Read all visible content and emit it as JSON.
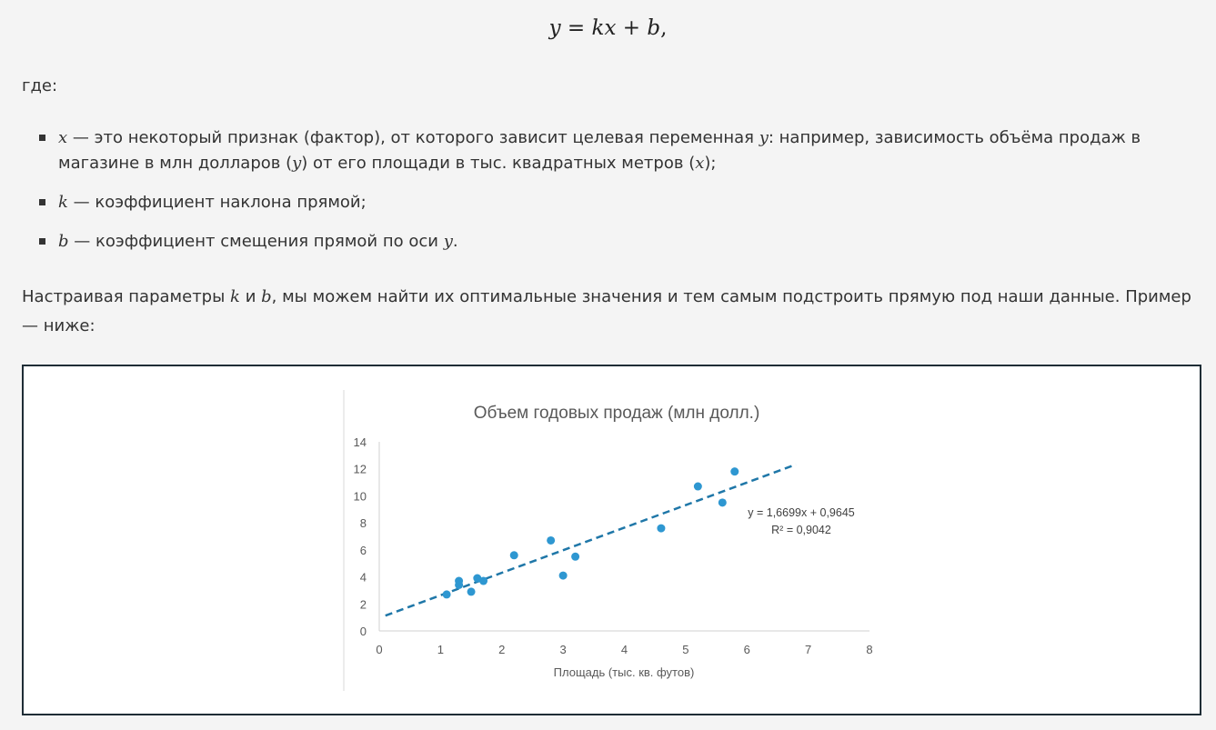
{
  "formula": {
    "y": "y",
    "eq": " = ",
    "k": "k",
    "x": "x",
    "plus": " + ",
    "b": "b",
    "comma": ","
  },
  "where_label": "где:",
  "definitions": [
    {
      "var": "x",
      "text_a": " — это некоторый признак (фактор), от которого зависит целевая переменная ",
      "var2": "y",
      "text_b": ": например, зависимость объёма продаж в магазине в млн долларов (",
      "var3": "y",
      "text_c": ") от его площади в тыс. квадратных метров (",
      "var4": "x",
      "text_d": ");"
    },
    {
      "var": "k",
      "text_a": " — коэффициент наклона прямой;"
    },
    {
      "var": "b",
      "text_a": " — коэффициент смещения прямой по оси ",
      "var2": "y",
      "text_b": "."
    }
  ],
  "paragraph": {
    "a": "Настраивая параметры ",
    "k": "k",
    "b_text": " и ",
    "b": "b",
    "c": ", мы можем найти их оптимальные значения и тем самым подстроить прямую под наши данные. Пример — ниже:"
  },
  "chart_data": {
    "type": "scatter",
    "title": "Объем годовых продаж (млн  долл.)",
    "xlabel": "Площадь (тыс. кв. футов)",
    "ylabel": "",
    "xlim": [
      0,
      8
    ],
    "ylim": [
      0,
      14
    ],
    "x_ticks": [
      0,
      1,
      2,
      3,
      4,
      5,
      6,
      7,
      8
    ],
    "y_ticks": [
      0,
      2,
      4,
      6,
      8,
      10,
      12,
      14
    ],
    "points": [
      {
        "x": 1.1,
        "y": 2.7
      },
      {
        "x": 1.3,
        "y": 3.4
      },
      {
        "x": 1.3,
        "y": 3.7
      },
      {
        "x": 1.5,
        "y": 2.9
      },
      {
        "x": 1.6,
        "y": 3.9
      },
      {
        "x": 1.7,
        "y": 3.7
      },
      {
        "x": 2.2,
        "y": 5.6
      },
      {
        "x": 2.8,
        "y": 6.7
      },
      {
        "x": 3.0,
        "y": 4.1
      },
      {
        "x": 3.2,
        "y": 5.5
      },
      {
        "x": 4.6,
        "y": 7.6
      },
      {
        "x": 5.2,
        "y": 10.7
      },
      {
        "x": 5.6,
        "y": 9.5
      },
      {
        "x": 5.8,
        "y": 11.8
      }
    ],
    "trendline": {
      "type": "linear",
      "slope": 1.6699,
      "intercept": 0.9645,
      "x_range": [
        0.1,
        6.8
      ],
      "equation_text": "y = 1,6699x + 0,9645",
      "r2_text": "R² = 0,9042"
    },
    "colors": {
      "points": "#2e97d1",
      "trendline": "#1f77a8",
      "axis": "#d0d0d0",
      "text": "#595959"
    }
  }
}
